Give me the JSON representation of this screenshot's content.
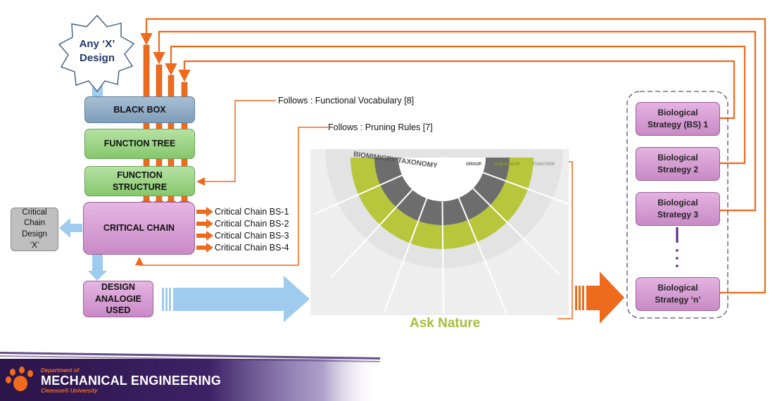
{
  "start": {
    "line1": "Any ‘X’",
    "line2": "Design"
  },
  "process": {
    "black_box": "BLACK BOX",
    "function_tree": "FUNCTION TREE",
    "function_structure_l1": "FUNCTION",
    "function_structure_l2": "STRUCTURE",
    "critical_chain": "CRITICAL CHAIN",
    "design_l1": "DESIGN",
    "design_l2": "ANALOGIE",
    "design_l3": "USED"
  },
  "critical_chain_design": {
    "l1": "Critical",
    "l2": "Chain",
    "l3": "Design",
    "l4": "‘X’"
  },
  "critical_chains": [
    "Critical Chain BS-1",
    "Critical Chain BS-2",
    "Critical Chain BS-3",
    "Critical Chain BS-4"
  ],
  "notes": {
    "functional_vocabulary": "Follows : Functional Vocabulary [8]",
    "pruning_rules": "Follows : Pruning Rules [7]"
  },
  "taxonomy": {
    "title": "BIOMIMICRY TAXONOMY",
    "group": "GROUP",
    "subgroup": "SUB-GROUP",
    "function": "FUNCTION"
  },
  "ask_nature": "Ask Nature",
  "strategies": [
    {
      "l1": "Biological",
      "l2": "Strategy (BS) 1"
    },
    {
      "l1": "Biological",
      "l2": "Strategy 2"
    },
    {
      "l1": "Biological",
      "l2": "Strategy 3"
    },
    {
      "l1": "Biological",
      "l2": "Strategy ‘n’"
    }
  ],
  "footer": {
    "dept_prefix": "Department of",
    "dept_name": "MECHANICAL ENGINEERING",
    "university": "Clemson® University"
  },
  "colors": {
    "orange": "#ee6a1c",
    "light_blue": "#9ecbee",
    "olive": "#b7c63a",
    "purple_dark": "#3a1a5e",
    "clemson_orange": "#f06b1d"
  }
}
